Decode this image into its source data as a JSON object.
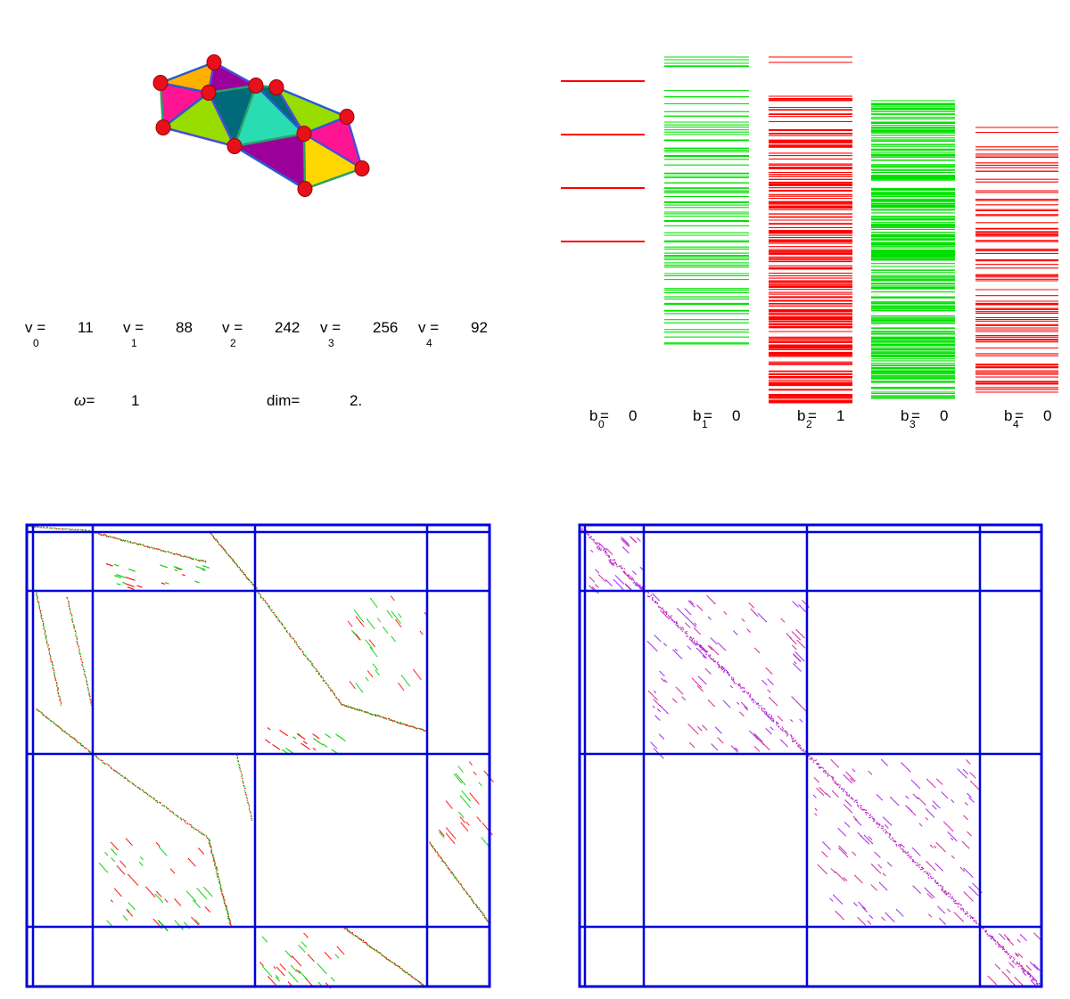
{
  "complex": {
    "colors": {
      "vertex": "#e8101a",
      "faces": [
        "#ffb000",
        "#ff1493",
        "#9b009b",
        "#99dd00",
        "#006a7a",
        "#2adcb2",
        "#ffd700"
      ]
    }
  },
  "counts": [
    {
      "label": "v",
      "sub": "0",
      "eq": "=",
      "value": "11"
    },
    {
      "label": "v",
      "sub": "1",
      "eq": "=",
      "value": "88"
    },
    {
      "label": "v",
      "sub": "2",
      "eq": "=",
      "value": "242"
    },
    {
      "label": "v",
      "sub": "3",
      "eq": "=",
      "value": "256"
    },
    {
      "label": "v",
      "sub": "4",
      "eq": "=",
      "value": "92"
    }
  ],
  "omega": {
    "label": "ω=",
    "value": "1"
  },
  "dim": {
    "label": "dim=",
    "value": "2."
  },
  "betti": [
    {
      "label": "b",
      "sub": "0",
      "eq": "=",
      "value": "0",
      "color": "#ff0000"
    },
    {
      "label": "b",
      "sub": "1",
      "eq": "=",
      "value": "0",
      "color": "#00e000"
    },
    {
      "label": "b",
      "sub": "2",
      "eq": "=",
      "value": "1",
      "color": "#ff0000"
    },
    {
      "label": "b",
      "sub": "3",
      "eq": "=",
      "value": "0",
      "color": "#00e000"
    },
    {
      "label": "b",
      "sub": "4",
      "eq": "=",
      "value": "0",
      "color": "#ff0000"
    }
  ],
  "matrices": {
    "grid_color": "#0000dd",
    "dirac_colors": [
      "#ff0000",
      "#00cc00"
    ],
    "laplacian_color": "#a020f0"
  }
}
